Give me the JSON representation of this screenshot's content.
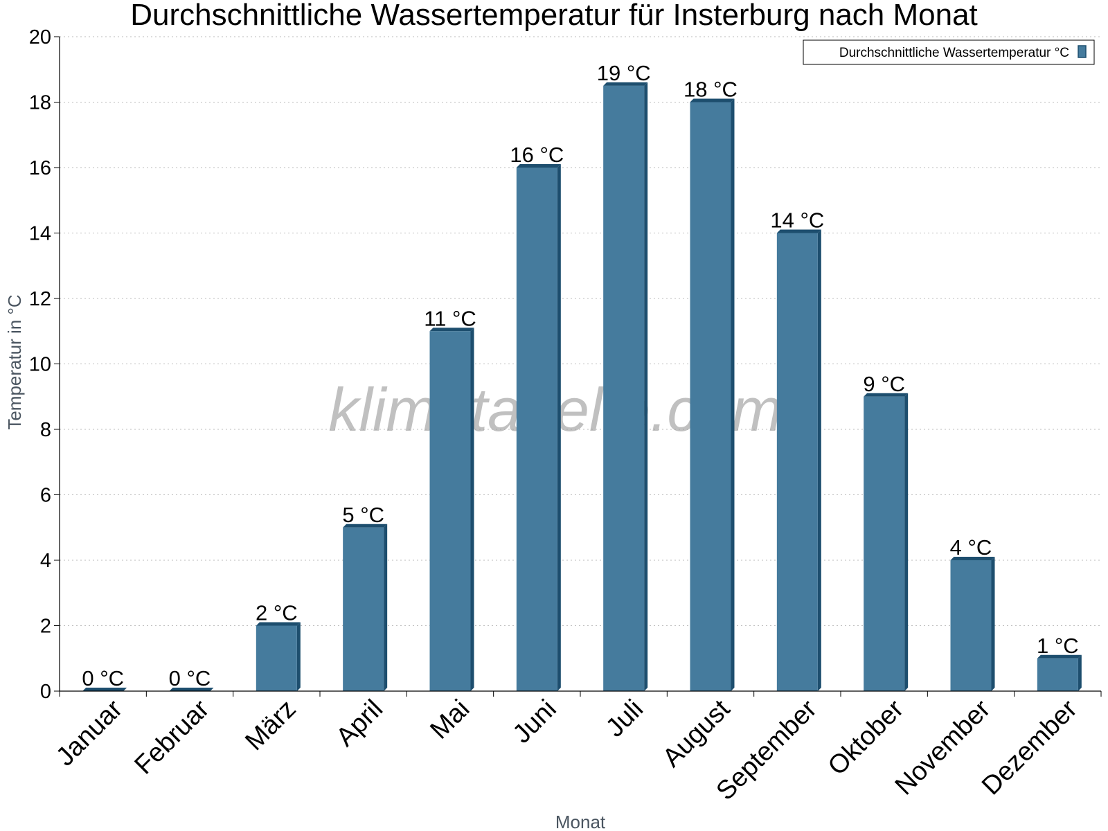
{
  "chart_data": {
    "type": "bar",
    "title": "Durchschnittliche Wassertemperatur für Insterburg nach Monat",
    "xlabel": "Monat",
    "ylabel": "Temperatur in °C",
    "categories": [
      "Januar",
      "Februar",
      "März",
      "April",
      "Mai",
      "Juni",
      "Juli",
      "August",
      "September",
      "Oktober",
      "November",
      "Dezember"
    ],
    "series": [
      {
        "name": "Durchschnittliche Wassertemperatur °C",
        "values": [
          0,
          0,
          2,
          5,
          11,
          16,
          18.5,
          18,
          14,
          9,
          4,
          1
        ],
        "data_labels": [
          "0 °C",
          "0 °C",
          "2 °C",
          "5 °C",
          "11 °C",
          "16 °C",
          "19 °C",
          "18 °C",
          "14 °C",
          "9 °C",
          "4 °C",
          "1 °C"
        ]
      }
    ],
    "ylim": [
      0,
      20
    ],
    "yticks": [
      "0",
      "2",
      "4",
      "6",
      "8",
      "10",
      "12",
      "14",
      "16",
      "18",
      "20"
    ],
    "grid": true,
    "legend_position": "top-right",
    "colors": {
      "bar": "#457b9d",
      "bar_side": "#1d4e6e",
      "grid": "#bbbbbb"
    },
    "watermark": "klimatabelle.com"
  }
}
